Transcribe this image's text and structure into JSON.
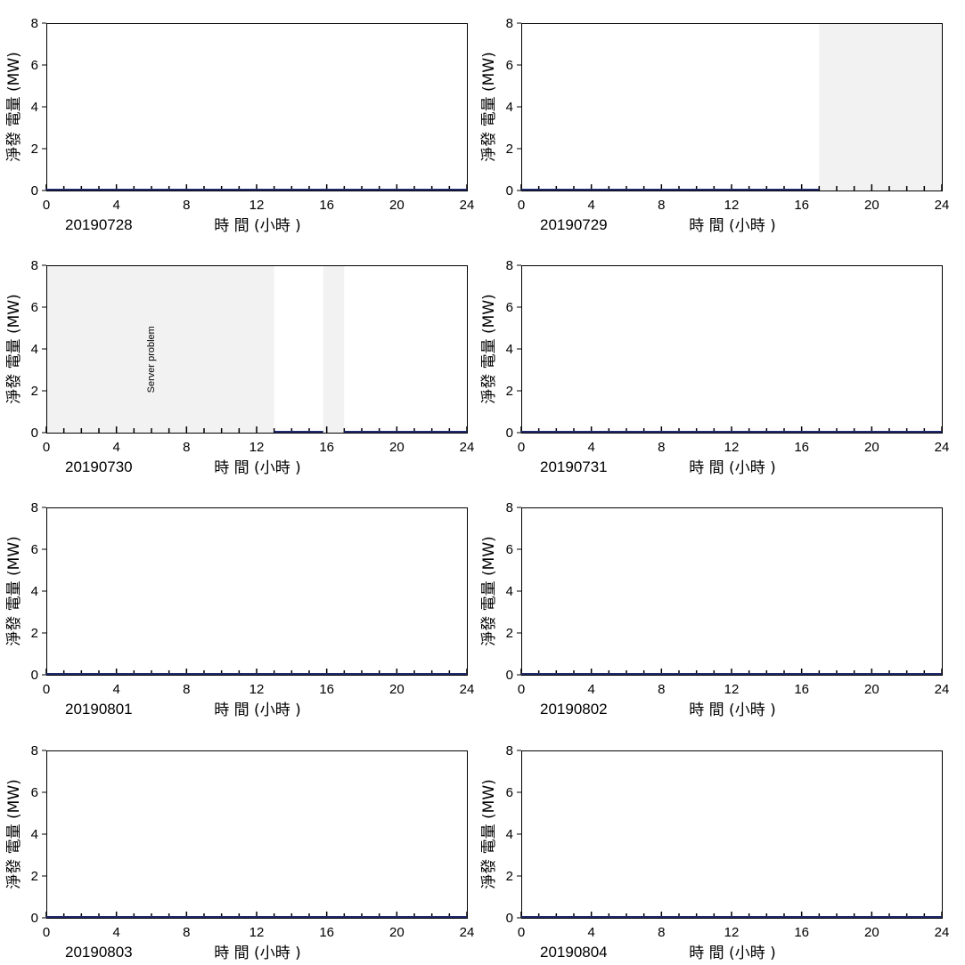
{
  "chart_data": [
    {
      "type": "line",
      "date_label": "20190728",
      "xlabel": "時 間 (小時 )",
      "ylabel": "淨發 電量 (MW)",
      "xlim": [
        0,
        24
      ],
      "ylim": [
        0,
        8
      ],
      "xticks": [
        0,
        4,
        8,
        12,
        16,
        20,
        24
      ],
      "yticks": [
        0,
        2,
        4,
        6,
        8
      ],
      "shaded": [],
      "annotations": [],
      "series": [
        {
          "color": "#1f2a6e",
          "points": [
            [
              0,
              0
            ],
            [
              24,
              0
            ]
          ]
        }
      ]
    },
    {
      "type": "line",
      "date_label": "20190729",
      "xlabel": "時 間 (小時 )",
      "ylabel": "淨發 電量 (MW)",
      "xlim": [
        0,
        24
      ],
      "ylim": [
        0,
        8
      ],
      "xticks": [
        0,
        4,
        8,
        12,
        16,
        20,
        24
      ],
      "yticks": [
        0,
        2,
        4,
        6,
        8
      ],
      "shaded": [
        [
          17,
          24
        ]
      ],
      "annotations": [],
      "series": [
        {
          "color": "#1f2a6e",
          "points": [
            [
              0,
              0
            ],
            [
              17,
              0
            ]
          ]
        }
      ]
    },
    {
      "type": "line",
      "date_label": "20190730",
      "xlabel": "時 間 (小時 )",
      "ylabel": "淨發 電量 (MW)",
      "xlim": [
        0,
        24
      ],
      "ylim": [
        0,
        8
      ],
      "xticks": [
        0,
        4,
        8,
        12,
        16,
        20,
        24
      ],
      "yticks": [
        0,
        2,
        4,
        6,
        8
      ],
      "shaded": [
        [
          0,
          13
        ],
        [
          15.8,
          17
        ]
      ],
      "annotations": [
        {
          "text": "Server problem",
          "x": 6,
          "y": 3.5,
          "rotate": true
        }
      ],
      "series": [
        {
          "color": "#1f2a6e",
          "points": [
            [
              13,
              0
            ],
            [
              15.8,
              0
            ]
          ]
        },
        {
          "color": "#1f2a6e",
          "points": [
            [
              17,
              0
            ],
            [
              24,
              0
            ]
          ]
        }
      ]
    },
    {
      "type": "line",
      "date_label": "20190731",
      "xlabel": "時 間 (小時 )",
      "ylabel": "淨發 電量 (MW)",
      "xlim": [
        0,
        24
      ],
      "ylim": [
        0,
        8
      ],
      "xticks": [
        0,
        4,
        8,
        12,
        16,
        20,
        24
      ],
      "yticks": [
        0,
        2,
        4,
        6,
        8
      ],
      "shaded": [],
      "annotations": [],
      "series": [
        {
          "color": "#1f2a6e",
          "points": [
            [
              0,
              0
            ],
            [
              24,
              0
            ]
          ]
        }
      ]
    },
    {
      "type": "line",
      "date_label": "20190801",
      "xlabel": "時 間 (小時 )",
      "ylabel": "淨發 電量 (MW)",
      "xlim": [
        0,
        24
      ],
      "ylim": [
        0,
        8
      ],
      "xticks": [
        0,
        4,
        8,
        12,
        16,
        20,
        24
      ],
      "yticks": [
        0,
        2,
        4,
        6,
        8
      ],
      "shaded": [],
      "annotations": [],
      "series": [
        {
          "color": "#1f2a6e",
          "points": [
            [
              0,
              0
            ],
            [
              24,
              0
            ]
          ]
        }
      ]
    },
    {
      "type": "line",
      "date_label": "20190802",
      "xlabel": "時 間 (小時 )",
      "ylabel": "淨發 電量 (MW)",
      "xlim": [
        0,
        24
      ],
      "ylim": [
        0,
        8
      ],
      "xticks": [
        0,
        4,
        8,
        12,
        16,
        20,
        24
      ],
      "yticks": [
        0,
        2,
        4,
        6,
        8
      ],
      "shaded": [],
      "annotations": [],
      "series": [
        {
          "color": "#1f2a6e",
          "points": [
            [
              0,
              0
            ],
            [
              24,
              0
            ]
          ]
        }
      ]
    },
    {
      "type": "line",
      "date_label": "20190803",
      "xlabel": "時 間 (小時 )",
      "ylabel": "淨發 電量 (MW)",
      "xlim": [
        0,
        24
      ],
      "ylim": [
        0,
        8
      ],
      "xticks": [
        0,
        4,
        8,
        12,
        16,
        20,
        24
      ],
      "yticks": [
        0,
        2,
        4,
        6,
        8
      ],
      "shaded": [],
      "annotations": [],
      "series": [
        {
          "color": "#1f2a6e",
          "points": [
            [
              0,
              0
            ],
            [
              24,
              0
            ]
          ]
        }
      ]
    },
    {
      "type": "line",
      "date_label": "20190804",
      "xlabel": "時 間 (小時 )",
      "ylabel": "淨發 電量 (MW)",
      "xlim": [
        0,
        24
      ],
      "ylim": [
        0,
        8
      ],
      "xticks": [
        0,
        4,
        8,
        12,
        16,
        20,
        24
      ],
      "yticks": [
        0,
        2,
        4,
        6,
        8
      ],
      "shaded": [],
      "annotations": [],
      "series": [
        {
          "color": "#1f2a6e",
          "points": [
            [
              0,
              0
            ],
            [
              24,
              0
            ]
          ]
        }
      ]
    }
  ],
  "colors": {
    "shade": "#f2f2f2",
    "axis": "#000000",
    "line": "#1f2a6e"
  }
}
